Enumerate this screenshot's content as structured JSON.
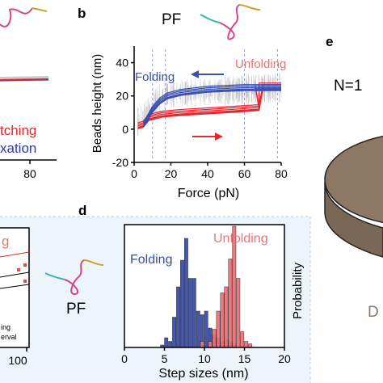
{
  "panels": {
    "b_letter": "b",
    "d_letter": "d",
    "e_letter": "e",
    "pf_top": "PF",
    "pf_mid": "PF",
    "left_frag": {
      "tick_80": "80",
      "tick_100": "100",
      "word_top": "tching",
      "word_bottom": "xation",
      "word_g": "g",
      "leg1": "ing",
      "leg2": "erval"
    },
    "e_frag": {
      "n_label": "N=1",
      "d_label": "D"
    }
  },
  "colors": {
    "folding": "#3b4fa8",
    "unfolding": "#e8747a",
    "red_trace": "#e8242c",
    "blue_trace": "#3a4fb0",
    "grey_trace": "#b5b5b5",
    "disk_fill": "#8c7864",
    "panel_bg": "#eef5fa"
  },
  "chart_data": [
    {
      "id": "panel-b",
      "type": "line",
      "title": "",
      "xlabel": "Force (pN)",
      "ylabel": "Beads height (nm)",
      "xlim": [
        0,
        80
      ],
      "ylim": [
        -20,
        50
      ],
      "xticks": [
        0,
        20,
        40,
        60,
        80
      ],
      "yticks": [
        -20,
        0,
        20,
        40
      ],
      "annotations": [
        "Folding",
        "Unfolding"
      ],
      "dashed_lines_x": [
        10,
        17,
        60,
        78
      ],
      "series": [
        {
          "name": "Unfolding",
          "values": [
            [
              2,
              2
            ],
            [
              5,
              3
            ],
            [
              8,
              7
            ],
            [
              15,
              9
            ],
            [
              25,
              10
            ],
            [
              40,
              11
            ],
            [
              55,
              12
            ],
            [
              68,
              13
            ],
            [
              70,
              26
            ],
            [
              80,
              26
            ]
          ]
        },
        {
          "name": "Folding",
          "values": [
            [
              80,
              25
            ],
            [
              60,
              25
            ],
            [
              40,
              24
            ],
            [
              25,
              22
            ],
            [
              18,
              20
            ],
            [
              14,
              17
            ],
            [
              10,
              12
            ],
            [
              7,
              6
            ],
            [
              5,
              3
            ]
          ]
        }
      ]
    },
    {
      "id": "panel-d",
      "type": "bar",
      "title": "",
      "xlabel": "Step sizes (nm)",
      "ylabel": "Probability",
      "xlim": [
        0,
        20
      ],
      "xticks": [
        0,
        5,
        10,
        15,
        20
      ],
      "legend": [
        "Folding",
        "Unfolding"
      ],
      "bin_width": 0.5,
      "series": [
        {
          "name": "Folding",
          "values": [
            [
              4.5,
              0.02
            ],
            [
              5.0,
              0.08
            ],
            [
              5.5,
              0.05
            ],
            [
              6.0,
              0.25
            ],
            [
              6.5,
              0.5
            ],
            [
              7.0,
              0.72
            ],
            [
              7.5,
              0.9
            ],
            [
              8.0,
              0.57
            ],
            [
              8.5,
              0.57
            ],
            [
              9.0,
              0.3
            ],
            [
              9.5,
              0.27
            ],
            [
              10.0,
              0.3
            ],
            [
              10.5,
              0.16
            ],
            [
              11.0,
              0.1
            ],
            [
              11.5,
              0.08
            ],
            [
              12.0,
              0.05
            ],
            [
              12.5,
              0.07
            ],
            [
              13.0,
              0.05
            ],
            [
              13.5,
              0.03
            ]
          ]
        },
        {
          "name": "Unfolding",
          "values": [
            [
              9.5,
              0.05
            ],
            [
              10.5,
              0.05
            ],
            [
              11.0,
              0.15
            ],
            [
              11.5,
              0.3
            ],
            [
              12.0,
              0.45
            ],
            [
              12.5,
              0.5
            ],
            [
              13.0,
              0.73
            ],
            [
              13.5,
              1.0
            ],
            [
              14.0,
              0.57
            ],
            [
              14.5,
              0.13
            ],
            [
              15.0,
              0.05
            ],
            [
              15.5,
              0.03
            ]
          ]
        }
      ]
    }
  ]
}
